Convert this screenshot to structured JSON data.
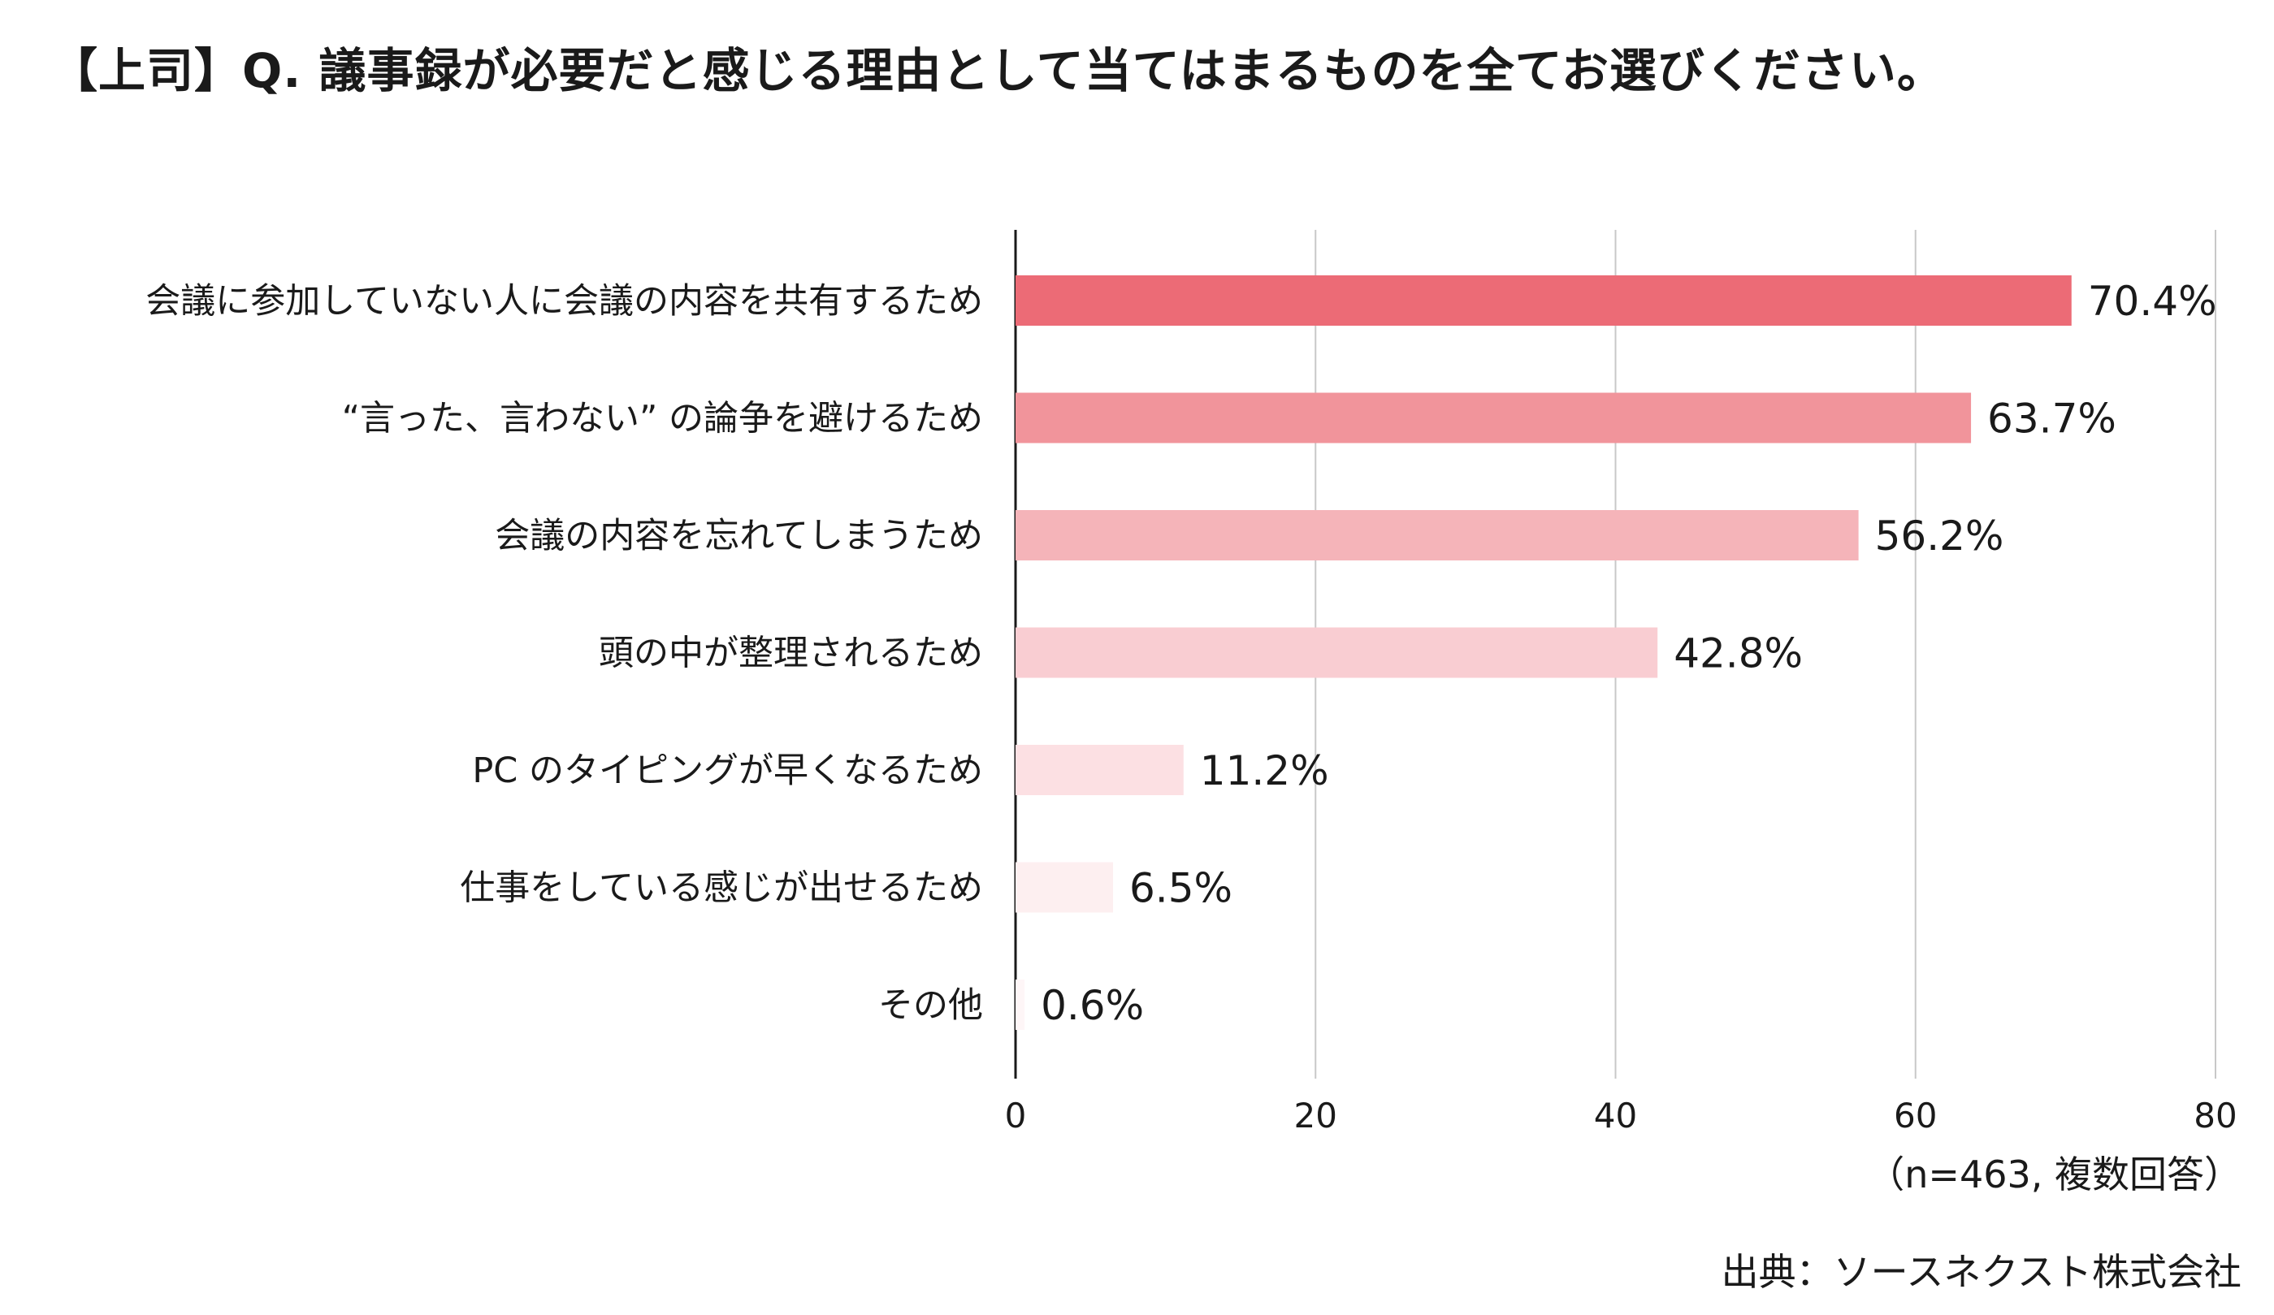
{
  "chart_data": {
    "type": "bar",
    "orientation": "horizontal",
    "title": "【上司】Q. 議事録が必要だと感じる理由として当てはまるものを全てお選びください。",
    "categories": [
      "会議に参加していない人に会議の内容を共有するため",
      "“言った、言わない” の論争を避けるため",
      "会議の内容を忘れてしまうため",
      "頭の中が整理されるため",
      "PC のタイピングが早くなるため",
      "仕事をしている感じが出せるため",
      "その他"
    ],
    "values": [
      70.4,
      63.7,
      56.2,
      42.8,
      11.2,
      6.5,
      0.6
    ],
    "value_labels": [
      "70.4%",
      "63.7%",
      "56.2%",
      "42.8%",
      "11.2%",
      "6.5%",
      "0.6%"
    ],
    "bar_colors": [
      "#ec6b76",
      "#f1949b",
      "#f5b4b9",
      "#f9cdd2",
      "#fce0e3",
      "#fdeff0",
      "#fef6f7"
    ],
    "xlim": [
      0,
      80
    ],
    "xticks": [
      0,
      20,
      40,
      60,
      80
    ],
    "grid": true,
    "gridline_color": "#c8c8c8",
    "xlabel": "",
    "ylabel": ""
  },
  "notes": {
    "sample": "（n=463, 複数回答）",
    "source": "出典：ソースネクスト株式会社"
  }
}
